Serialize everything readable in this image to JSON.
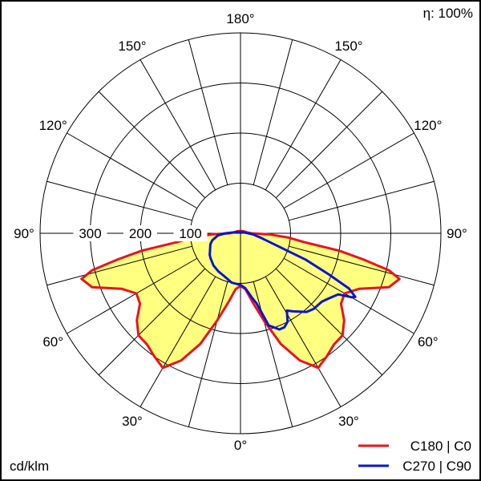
{
  "chart_data": {
    "type": "polar-line",
    "title": "",
    "unit_label": "cd/klm",
    "efficiency_label": "η: 100%",
    "radial_ticks": [
      100,
      200,
      300
    ],
    "radial_max": 400,
    "radial_tick_labels": [
      "100",
      "200",
      "300"
    ],
    "angle_labels": {
      "top": "180°",
      "bottom": "0°",
      "sides": [
        "150°",
        "120°",
        "90°",
        "60°",
        "30°"
      ]
    },
    "angle_label_values": [
      150,
      120,
      90,
      60,
      30
    ],
    "grid_angle_step": 15,
    "fill_color": "#ffff80",
    "series": [
      {
        "name": "C180 | C0",
        "color": "#e8141e",
        "left": [
          [
            0,
            105
          ],
          [
            5,
            112
          ],
          [
            10,
            140
          ],
          [
            15,
            180
          ],
          [
            20,
            235
          ],
          [
            25,
            280
          ],
          [
            30,
            310
          ],
          [
            35,
            300
          ],
          [
            40,
            290
          ],
          [
            45,
            288
          ],
          [
            50,
            270
          ],
          [
            55,
            245
          ],
          [
            60,
            240
          ],
          [
            65,
            262
          ],
          [
            70,
            315
          ],
          [
            74,
            330
          ],
          [
            76,
            305
          ],
          [
            78,
            250
          ],
          [
            80,
            200
          ],
          [
            82,
            130
          ],
          [
            85,
            95
          ],
          [
            88,
            55
          ],
          [
            90,
            22
          ],
          [
            100,
            12
          ],
          [
            120,
            8
          ],
          [
            150,
            5
          ],
          [
            180,
            5
          ]
        ],
        "right": [
          [
            0,
            105
          ],
          [
            5,
            112
          ],
          [
            10,
            140
          ],
          [
            15,
            180
          ],
          [
            20,
            235
          ],
          [
            25,
            280
          ],
          [
            30,
            310
          ],
          [
            35,
            300
          ],
          [
            40,
            290
          ],
          [
            45,
            288
          ],
          [
            50,
            270
          ],
          [
            55,
            245
          ],
          [
            60,
            240
          ],
          [
            65,
            262
          ],
          [
            70,
            315
          ],
          [
            74,
            330
          ],
          [
            76,
            305
          ],
          [
            78,
            250
          ],
          [
            80,
            200
          ],
          [
            82,
            130
          ],
          [
            85,
            95
          ],
          [
            88,
            55
          ],
          [
            90,
            22
          ],
          [
            100,
            12
          ],
          [
            120,
            8
          ],
          [
            150,
            5
          ],
          [
            180,
            5
          ]
        ]
      },
      {
        "name": "C270 | C90",
        "color": "#0a14d2",
        "left": [
          [
            0,
            103
          ],
          [
            10,
            100
          ],
          [
            20,
            92
          ],
          [
            30,
            88
          ],
          [
            40,
            84
          ],
          [
            50,
            78
          ],
          [
            55,
            75
          ],
          [
            63,
            68
          ],
          [
            70,
            64
          ],
          [
            76,
            58
          ],
          [
            85,
            45
          ],
          [
            90,
            30
          ],
          [
            100,
            12
          ],
          [
            180,
            3
          ]
        ],
        "right": [
          [
            0,
            103
          ],
          [
            5,
            110
          ],
          [
            10,
            130
          ],
          [
            13,
            144
          ],
          [
            17,
            192
          ],
          [
            22,
            207
          ],
          [
            25,
            207
          ],
          [
            28,
            200
          ],
          [
            31,
            180
          ],
          [
            34,
            188
          ],
          [
            40,
            205
          ],
          [
            44,
            210
          ],
          [
            50,
            212
          ],
          [
            54,
            220
          ],
          [
            58,
            230
          ],
          [
            60,
            255
          ],
          [
            61,
            262
          ],
          [
            63,
            243
          ],
          [
            65,
            195
          ],
          [
            68,
            140
          ],
          [
            71,
            80
          ],
          [
            78,
            40
          ],
          [
            85,
            25
          ],
          [
            90,
            15
          ],
          [
            180,
            3
          ]
        ]
      }
    ],
    "legend_position": "bottom-right"
  }
}
